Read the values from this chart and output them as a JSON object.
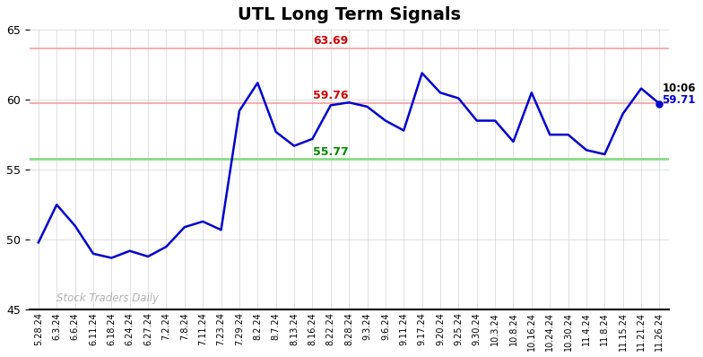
{
  "title": "UTL Long Term Signals",
  "ylim": [
    45,
    65
  ],
  "yticks": [
    45,
    50,
    55,
    60,
    65
  ],
  "hline_red": 63.69,
  "hline_pink": 59.76,
  "hline_green": 55.77,
  "label_red": "63.69",
  "label_pink": "59.76",
  "label_green": "55.77",
  "last_label_time": "10:06",
  "last_label_price": "59.71",
  "watermark": "Stock Traders Daily",
  "line_color": "#0000cc",
  "title_fontsize": 14,
  "x_labels": [
    "5.28.24",
    "6.3.24",
    "6.6.24",
    "6.11.24",
    "6.18.24",
    "6.24.24",
    "6.27.24",
    "7.2.24",
    "7.8.24",
    "7.11.24",
    "7.23.24",
    "7.29.24",
    "8.2.24",
    "8.7.24",
    "8.13.24",
    "8.16.24",
    "8.22.24",
    "8.28.24",
    "9.3.24",
    "9.6.24",
    "9.11.24",
    "9.17.24",
    "9.20.24",
    "9.25.24",
    "9.30.24",
    "10.3.24",
    "10.8.24",
    "10.16.24",
    "10.24.24",
    "10.30.24",
    "11.4.24",
    "11.8.24",
    "11.15.24",
    "11.21.24",
    "11.26.24"
  ],
  "y_values": [
    49.8,
    52.5,
    51.0,
    49.0,
    48.7,
    49.2,
    48.8,
    49.5,
    50.9,
    51.3,
    50.7,
    59.2,
    61.2,
    57.7,
    56.7,
    57.2,
    59.6,
    59.8,
    59.5,
    58.5,
    57.8,
    61.9,
    60.5,
    60.1,
    58.5,
    58.5,
    57.0,
    60.5,
    57.5,
    57.5,
    56.4,
    56.1,
    59.0,
    60.8,
    59.71
  ],
  "bg_color": "#ffffff",
  "hline_thin_color": "#f5a0a0",
  "hline_green_color": "#88dd88"
}
